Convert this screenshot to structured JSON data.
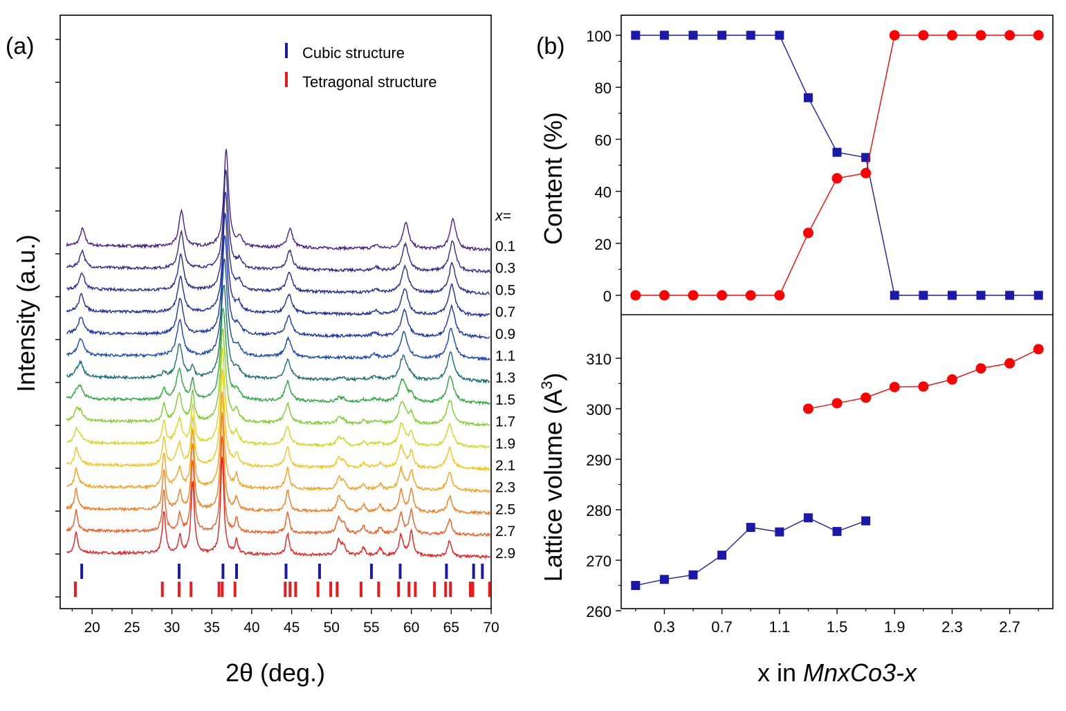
{
  "chart_data": [
    {
      "panel": "(a)",
      "type": "line",
      "xlabel": "2θ (deg.)",
      "ylabel": "Intensity (a.u.)",
      "xlim": [
        16,
        70
      ],
      "xticks": [
        20,
        25,
        30,
        35,
        40,
        45,
        50,
        55,
        60,
        65,
        70
      ],
      "x_header": "x=",
      "legend": [
        {
          "label": "Cubic structure",
          "color": "#1a1aaa"
        },
        {
          "label": "Tetragonal structure",
          "color": "#e81c1c"
        }
      ],
      "legend_position": "top-right",
      "series": [
        {
          "name": "0.1",
          "color": "#4b1a8c"
        },
        {
          "name": "0.3",
          "color": "#2e2a8a"
        },
        {
          "name": "0.5",
          "color": "#262b8e"
        },
        {
          "name": "0.7",
          "color": "#1e2c98"
        },
        {
          "name": "0.9",
          "color": "#1b35a8"
        },
        {
          "name": "1.1",
          "color": "#1847b4"
        },
        {
          "name": "1.3",
          "color": "#1c6b78"
        },
        {
          "name": "1.5",
          "color": "#27a83a"
        },
        {
          "name": "1.7",
          "color": "#7ccc2a"
        },
        {
          "name": "1.9",
          "color": "#cfd71e"
        },
        {
          "name": "2.1",
          "color": "#f0c61a"
        },
        {
          "name": "2.3",
          "color": "#f4a01a"
        },
        {
          "name": "2.5",
          "color": "#f37c1e"
        },
        {
          "name": "2.7",
          "color": "#f05a20"
        },
        {
          "name": "2.9",
          "color": "#e81c1c"
        }
      ],
      "cubic_reflections": [
        18.7,
        30.9,
        36.4,
        38.1,
        44.3,
        48.5,
        55.0,
        58.6,
        64.4,
        67.8,
        68.9
      ],
      "tetragonal_reflections": [
        17.9,
        28.8,
        30.9,
        32.4,
        35.9,
        36.3,
        37.9,
        44.2,
        44.8,
        45.5,
        48.3,
        49.9,
        50.7,
        53.7,
        55.9,
        58.4,
        59.7,
        60.5,
        62.9,
        64.3,
        64.9,
        67.4,
        67.7,
        69.8
      ]
    },
    {
      "panel": "(b)",
      "type": "line",
      "ylabel": "Content (%)",
      "ylim": [
        0,
        100
      ],
      "yticks": [
        0,
        20,
        40,
        60,
        80,
        100
      ],
      "x": [
        0.1,
        0.3,
        0.5,
        0.7,
        0.9,
        1.1,
        1.3,
        1.5,
        1.7,
        1.9,
        2.1,
        2.3,
        2.5,
        2.7,
        2.9
      ],
      "series": [
        {
          "marker": "square",
          "color": "#1a1aaa",
          "values": [
            100,
            100,
            100,
            100,
            100,
            100,
            76,
            55,
            53,
            0,
            0,
            0,
            0,
            0,
            0
          ]
        },
        {
          "marker": "circle",
          "color": "#ff0000",
          "values": [
            0,
            0,
            0,
            0,
            0,
            0,
            24,
            45,
            47,
            100,
            100,
            100,
            100,
            100,
            100
          ]
        }
      ]
    },
    {
      "type": "line",
      "ylabel": "Lattice volume (A",
      "ylabel_sup": "3",
      "ylabel_end": ")",
      "xlabel_prefix": "x in ",
      "xlabel_italic": "MnxCo3-x",
      "ylim": [
        260,
        315
      ],
      "yticks": [
        260,
        270,
        280,
        290,
        300,
        310
      ],
      "xlim": [
        0,
        3.0
      ],
      "xticks": [
        0.3,
        0.7,
        1.1,
        1.5,
        1.9,
        2.3,
        2.7
      ],
      "series": [
        {
          "marker": "square",
          "color": "#1a1aaa",
          "x": [
            0.1,
            0.3,
            0.5,
            0.7,
            0.9,
            1.1,
            1.3,
            1.5,
            1.7
          ],
          "values": [
            265.0,
            266.2,
            267.1,
            271.0,
            276.5,
            275.6,
            278.4,
            275.7,
            277.8
          ]
        },
        {
          "marker": "circle",
          "color": "#ff0000",
          "x": [
            1.3,
            1.5,
            1.7,
            1.9,
            2.1,
            2.3,
            2.5,
            2.7,
            2.9
          ],
          "values": [
            300.0,
            301.1,
            302.2,
            304.3,
            304.4,
            305.8,
            308.0,
            309.0,
            311.8
          ]
        }
      ]
    }
  ]
}
